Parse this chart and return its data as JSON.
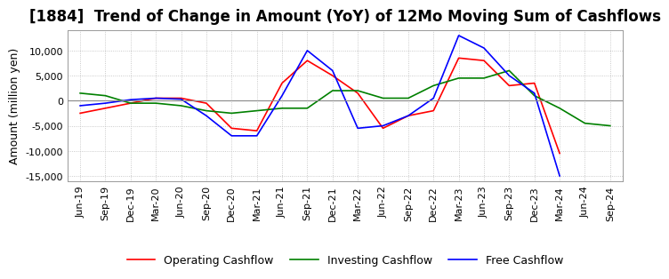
{
  "title": "[1884]  Trend of Change in Amount (YoY) of 12Mo Moving Sum of Cashflows",
  "ylabel": "Amount (million yen)",
  "ylim": [
    -16000,
    14000
  ],
  "yticks": [
    -15000,
    -10000,
    -5000,
    0,
    5000,
    10000
  ],
  "x_labels": [
    "Jun-19",
    "Sep-19",
    "Dec-19",
    "Mar-20",
    "Jun-20",
    "Sep-20",
    "Dec-20",
    "Mar-21",
    "Jun-21",
    "Sep-21",
    "Dec-21",
    "Mar-22",
    "Jun-22",
    "Sep-22",
    "Dec-22",
    "Mar-23",
    "Jun-23",
    "Sep-23",
    "Dec-23",
    "Mar-24",
    "Jun-24",
    "Sep-24"
  ],
  "operating": [
    -2500,
    -1500,
    -500,
    500,
    500,
    -500,
    -5500,
    -6000,
    3500,
    8000,
    5000,
    1500,
    -5500,
    -3000,
    -2000,
    8500,
    8000,
    3000,
    3500,
    -10500,
    null,
    null
  ],
  "investing": [
    1500,
    1000,
    -500,
    -500,
    -1000,
    -2000,
    -2500,
    -2000,
    -1500,
    -1500,
    2000,
    2000,
    500,
    500,
    3000,
    4500,
    4500,
    6000,
    1000,
    -1500,
    -4500,
    -5000
  ],
  "free": [
    -1000,
    -500,
    200,
    500,
    300,
    -3000,
    -7000,
    -7000,
    1000,
    10000,
    6000,
    -5500,
    -5000,
    -3000,
    500,
    13000,
    10500,
    5000,
    1500,
    -15000,
    null,
    null
  ],
  "operating_color": "#ff0000",
  "investing_color": "#008000",
  "free_color": "#0000ff",
  "background_color": "#ffffff",
  "grid_color": "#bbbbbb",
  "title_fontsize": 12,
  "label_fontsize": 9,
  "tick_fontsize": 8
}
